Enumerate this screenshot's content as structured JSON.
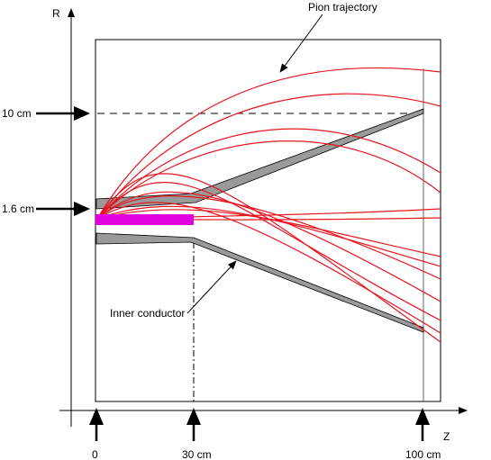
{
  "axes": {
    "r_label": "R",
    "z_label": "Z"
  },
  "labels": {
    "r_10cm": "10 cm",
    "r_1_6cm": "1.6 cm",
    "z_0": "0",
    "z_30cm": "30 cm",
    "z_100cm": "100 cm",
    "pion_trajectory": "Pion trajectory",
    "inner_conductor": "Inner conductor"
  },
  "colors": {
    "trajectory": "#e8141e",
    "conductor_fill": "#9a9a9a",
    "target": "#e000e0",
    "lines": "#000000"
  }
}
